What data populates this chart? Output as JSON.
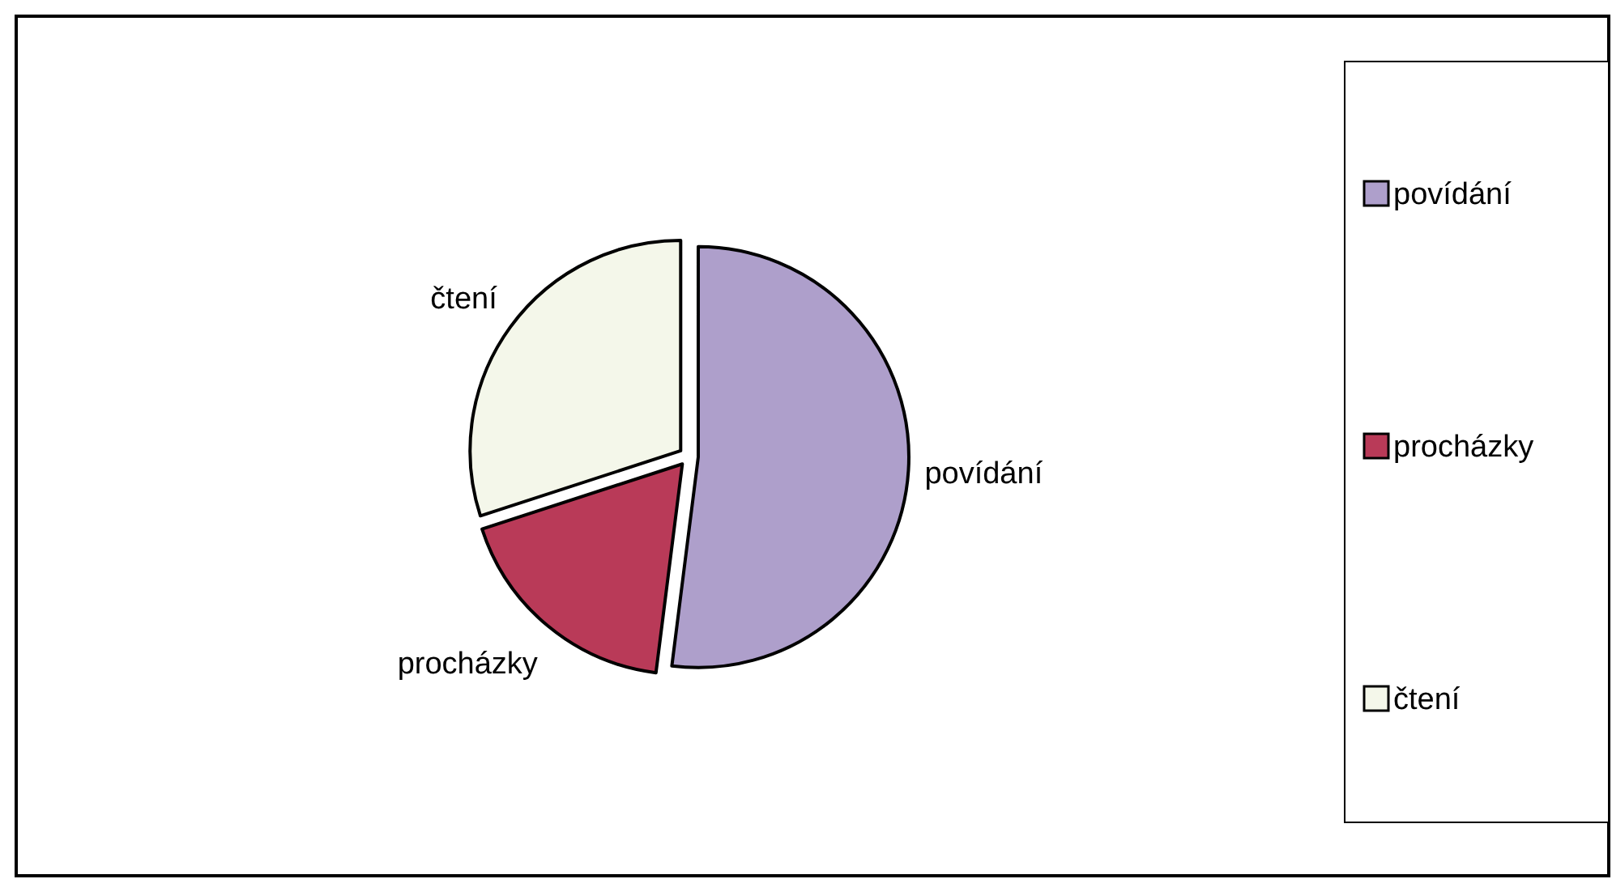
{
  "chart_data": {
    "type": "pie",
    "categories": [
      "povídání",
      "procházky",
      "čtení"
    ],
    "values": [
      52,
      18,
      30
    ],
    "colors": [
      "#ae9fcb",
      "#b93a58",
      "#f4f7ea"
    ],
    "legend": "right"
  }
}
